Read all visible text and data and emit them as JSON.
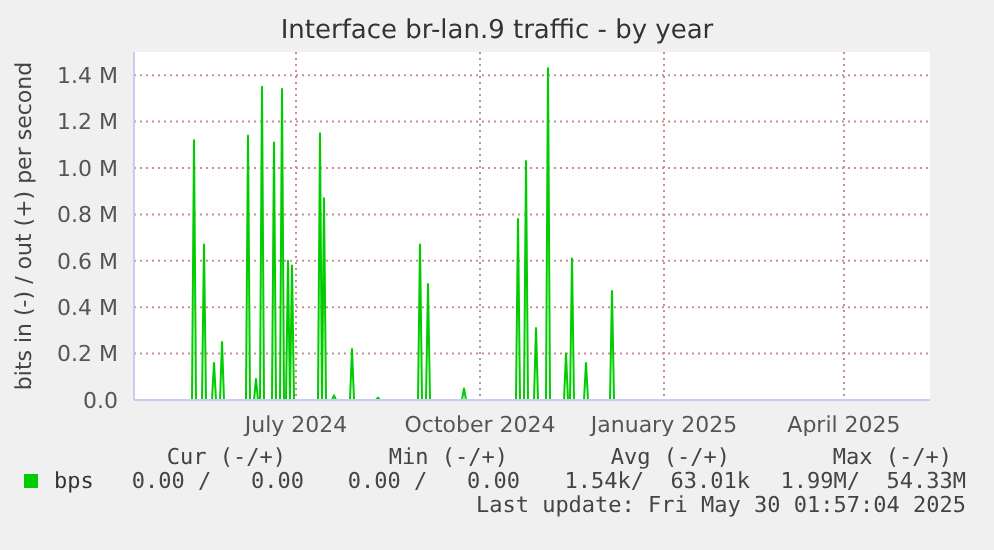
{
  "chart_data": {
    "type": "line",
    "title": "Interface br-lan.9 traffic - by year",
    "ylabel": "bits in (-) / out (+) per second",
    "x": [
      "2024-05-20",
      "2024-05-26",
      "2024-05-27",
      "2024-05-28",
      "2024-05-31",
      "2024-06-01",
      "2024-06-02",
      "2024-06-05",
      "2024-06-06",
      "2024-06-07",
      "2024-06-09",
      "2024-06-10",
      "2024-06-11",
      "2024-06-22",
      "2024-06-23",
      "2024-06-24",
      "2024-06-26",
      "2024-06-27",
      "2024-06-28",
      "2024-06-29",
      "2024-06-30",
      "2024-07-01",
      "2024-07-05",
      "2024-07-06",
      "2024-07-07",
      "2024-07-09",
      "2024-07-10",
      "2024-07-11",
      "2024-07-12",
      "2024-07-13",
      "2024-07-14",
      "2024-07-15",
      "2024-07-16",
      "2024-07-28",
      "2024-07-29",
      "2024-07-30",
      "2024-07-31",
      "2024-08-01",
      "2024-08-04",
      "2024-08-05",
      "2024-08-06",
      "2024-08-13",
      "2024-08-14",
      "2024-08-15",
      "2024-08-26",
      "2024-08-27",
      "2024-08-28",
      "2024-09-16",
      "2024-09-17",
      "2024-09-18",
      "2024-09-20",
      "2024-09-21",
      "2024-09-22",
      "2024-10-08",
      "2024-10-09",
      "2024-10-10",
      "2024-11-04",
      "2024-11-05",
      "2024-11-06",
      "2024-11-08",
      "2024-11-09",
      "2024-11-10",
      "2024-11-13",
      "2024-11-14",
      "2024-11-15",
      "2024-11-19",
      "2024-11-20",
      "2024-11-21",
      "2024-11-28",
      "2024-11-29",
      "2024-11-30",
      "2024-12-01",
      "2024-12-02",
      "2024-12-03",
      "2024-12-08",
      "2024-12-09",
      "2024-12-10",
      "2024-12-21",
      "2024-12-22",
      "2024-12-23",
      "2025-05-30"
    ],
    "series": [
      {
        "name": "bps",
        "color": "#00cc00",
        "values": [
          0,
          0,
          1120000,
          0,
          0,
          670000,
          0,
          0,
          160000,
          0,
          0,
          250000,
          0,
          0,
          1140000,
          0,
          0,
          90000,
          0,
          0,
          1350000,
          0,
          0,
          1110000,
          0,
          0,
          1340000,
          0,
          0,
          600000,
          0,
          580000,
          0,
          0,
          1150000,
          0,
          870000,
          0,
          0,
          20000,
          0,
          0,
          220000,
          0,
          0,
          10000,
          0,
          0,
          670000,
          0,
          0,
          500000,
          0,
          0,
          50000,
          0,
          0,
          780000,
          0,
          0,
          1030000,
          0,
          0,
          310000,
          0,
          0,
          1430000,
          0,
          0,
          200000,
          0,
          0,
          610000,
          0,
          0,
          160000,
          0,
          0,
          470000,
          0,
          0
        ]
      }
    ],
    "xlim": [
      "2024-04-27",
      "2025-05-30"
    ],
    "xticks": [
      {
        "value": "2024-07-17",
        "label": "July 2024"
      },
      {
        "value": "2024-10-17",
        "label": "October 2024"
      },
      {
        "value": "2025-01-17",
        "label": "January 2025"
      },
      {
        "value": "2025-04-17",
        "label": "April 2025"
      }
    ],
    "ylim": [
      0,
      1500000
    ],
    "yticks": [
      {
        "value": 0,
        "label": "0.0"
      },
      {
        "value": 200000,
        "label": "0.2 M"
      },
      {
        "value": 400000,
        "label": "0.4 M"
      },
      {
        "value": 600000,
        "label": "0.6 M"
      },
      {
        "value": 800000,
        "label": "0.8 M"
      },
      {
        "value": 1000000,
        "label": "1.0 M"
      },
      {
        "value": 1200000,
        "label": "1.2 M"
      },
      {
        "value": 1400000,
        "label": "1.4 M"
      }
    ],
    "grid": true,
    "legend": "bottom",
    "annotations": [
      "Cur (-/+)",
      "Min (-/+)",
      "Avg (-/+)",
      "Max (-/+)",
      "0.00 /   0.00",
      "0.00 /   0.00",
      "1.54k/  63.01k",
      "1.99M/  54.33M",
      "Last update: Fri May 30 01:57:04 2025"
    ]
  }
}
